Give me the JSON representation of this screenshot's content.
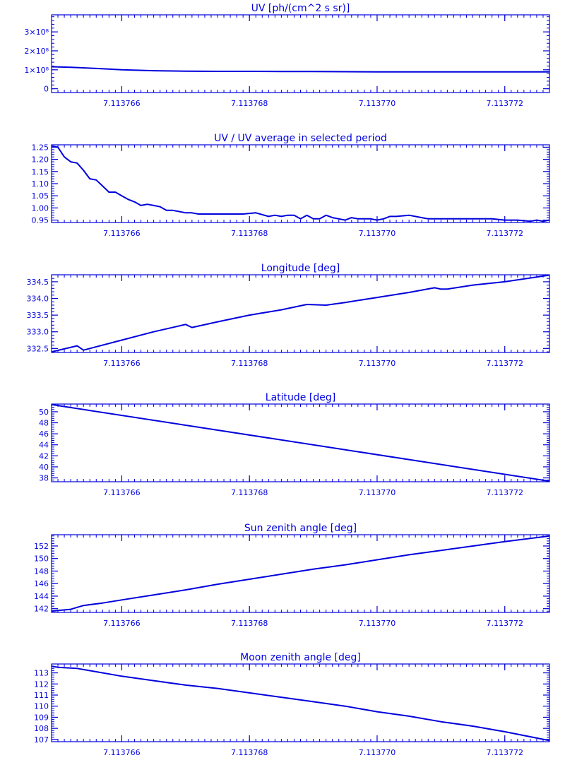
{
  "style": {
    "color": "#0000dd",
    "background": "#ffffff"
  },
  "chart_data": [
    {
      "type": "line",
      "title": "UV [ph/(cm^2 s sr)]",
      "xlim": [
        7.1137649,
        7.1137727
      ],
      "xticks": [
        7.113766,
        7.113768,
        7.11377,
        7.113772
      ],
      "xtick_labels": [
        "7.113766",
        "7.113768",
        "7.113770",
        "7.113772"
      ],
      "ylim": [
        -20000000.0,
        390000000.0
      ],
      "yticks": [
        0,
        100000000.0,
        200000000.0,
        300000000.0
      ],
      "ytick_labels": [
        "0",
        "1×10⁸",
        "2×10⁸",
        "3×10⁸"
      ],
      "grid": false,
      "x": [
        7.1137649,
        7.1137652,
        7.1137656,
        7.113766,
        7.1137665,
        7.113767,
        7.1137675,
        7.113768,
        7.1137685,
        7.113769,
        7.1137695,
        7.11377,
        7.1137705,
        7.113771,
        7.1137715,
        7.113772,
        7.1137727
      ],
      "y": [
        116000000.0,
        113000000.0,
        107000000.0,
        100000000.0,
        95000000.0,
        93000000.0,
        92000000.0,
        92000000.0,
        91000000.0,
        91000000.0,
        90000000.0,
        89000000.0,
        89000000.0,
        89000000.0,
        89000000.0,
        89000000.0,
        89000000.0
      ]
    },
    {
      "type": "line",
      "title": "UV / UV average in selected period",
      "xlim": [
        7.1137649,
        7.1137727
      ],
      "xticks": [
        7.113766,
        7.113768,
        7.11377,
        7.113772
      ],
      "xtick_labels": [
        "7.113766",
        "7.113768",
        "7.113770",
        "7.113772"
      ],
      "ylim": [
        0.94,
        1.26
      ],
      "yticks": [
        0.95,
        1.0,
        1.05,
        1.1,
        1.15,
        1.2,
        1.25
      ],
      "ytick_labels": [
        "0.95",
        "1.00",
        "1.05",
        "1.10",
        "1.15",
        "1.20",
        "1.25"
      ],
      "grid": false,
      "x": [
        7.1137649,
        7.113765,
        7.1137651,
        7.1137652,
        7.1137653,
        7.1137654,
        7.1137655,
        7.1137656,
        7.1137657,
        7.1137658,
        7.1137659,
        7.113766,
        7.1137661,
        7.1137662,
        7.1137663,
        7.1137664,
        7.1137665,
        7.1137666,
        7.1137667,
        7.1137668,
        7.1137669,
        7.113767,
        7.1137671,
        7.1137672,
        7.1137673,
        7.1137675,
        7.1137677,
        7.1137679,
        7.1137681,
        7.1137683,
        7.1137684,
        7.1137685,
        7.1137686,
        7.1137687,
        7.1137688,
        7.1137689,
        7.113769,
        7.1137691,
        7.1137692,
        7.1137693,
        7.1137694,
        7.1137695,
        7.1137696,
        7.1137697,
        7.1137698,
        7.1137699,
        7.11377,
        7.1137701,
        7.1137702,
        7.1137703,
        7.1137705,
        7.1137707,
        7.1137708,
        7.113771,
        7.1137712,
        7.1137714,
        7.1137716,
        7.1137718,
        7.113772,
        7.1137722,
        7.1137724,
        7.1137725,
        7.1137726,
        7.1137727
      ],
      "y": [
        1.255,
        1.25,
        1.21,
        1.19,
        1.185,
        1.155,
        1.12,
        1.115,
        1.09,
        1.065,
        1.065,
        1.05,
        1.035,
        1.025,
        1.01,
        1.015,
        1.01,
        1.005,
        0.99,
        0.99,
        0.985,
        0.98,
        0.98,
        0.975,
        0.975,
        0.975,
        0.975,
        0.975,
        0.98,
        0.965,
        0.97,
        0.965,
        0.97,
        0.97,
        0.955,
        0.97,
        0.955,
        0.955,
        0.97,
        0.96,
        0.955,
        0.95,
        0.96,
        0.955,
        0.955,
        0.955,
        0.95,
        0.955,
        0.965,
        0.965,
        0.97,
        0.96,
        0.955,
        0.955,
        0.955,
        0.955,
        0.955,
        0.955,
        0.95,
        0.95,
        0.945,
        0.95,
        0.945,
        0.95
      ]
    },
    {
      "type": "line",
      "title": "Longitude [deg]",
      "xlim": [
        7.1137649,
        7.1137727
      ],
      "xticks": [
        7.113766,
        7.113768,
        7.11377,
        7.113772
      ],
      "xtick_labels": [
        "7.113766",
        "7.113768",
        "7.113770",
        "7.113772"
      ],
      "ylim": [
        332.38,
        334.71
      ],
      "yticks": [
        332.5,
        333.0,
        333.5,
        334.0,
        334.5
      ],
      "ytick_labels": [
        "332.5",
        "333.0",
        "333.5",
        "334.0",
        "334.5"
      ],
      "grid": false,
      "x": [
        7.1137649,
        7.1137653,
        7.1137654,
        7.113766,
        7.1137665,
        7.113767,
        7.1137671,
        7.1137675,
        7.113768,
        7.1137685,
        7.1137688,
        7.1137689,
        7.1137692,
        7.1137695,
        7.11377,
        7.1137705,
        7.1137709,
        7.113771,
        7.1137711,
        7.1137715,
        7.113772,
        7.1137727
      ],
      "y": [
        332.4,
        332.58,
        332.45,
        332.75,
        333.0,
        333.22,
        333.13,
        333.3,
        333.5,
        333.66,
        333.78,
        333.82,
        333.8,
        333.88,
        334.03,
        334.18,
        334.32,
        334.28,
        334.28,
        334.4,
        334.5,
        334.7
      ]
    },
    {
      "type": "line",
      "title": "Latitude [deg]",
      "xlim": [
        7.1137649,
        7.1137727
      ],
      "xticks": [
        7.113766,
        7.113768,
        7.11377,
        7.113772
      ],
      "xtick_labels": [
        "7.113766",
        "7.113768",
        "7.113770",
        "7.113772"
      ],
      "ylim": [
        37.3,
        51.4
      ],
      "yticks": [
        38,
        40,
        42,
        44,
        46,
        48,
        50
      ],
      "ytick_labels": [
        "38",
        "40",
        "42",
        "44",
        "46",
        "48",
        "50"
      ],
      "grid": false,
      "x": [
        7.1137649,
        7.1137727
      ],
      "y": [
        51.3,
        37.4
      ]
    },
    {
      "type": "line",
      "title": "Sun zenith angle [deg]",
      "xlim": [
        7.1137649,
        7.1137727
      ],
      "xticks": [
        7.113766,
        7.113768,
        7.11377,
        7.113772
      ],
      "xtick_labels": [
        "7.113766",
        "7.113768",
        "7.113770",
        "7.113772"
      ],
      "ylim": [
        141.4,
        153.8
      ],
      "yticks": [
        142,
        144,
        146,
        148,
        150,
        152
      ],
      "ytick_labels": [
        "142",
        "144",
        "146",
        "148",
        "150",
        "152"
      ],
      "grid": false,
      "x": [
        7.1137649,
        7.113765,
        7.1137652,
        7.1137654,
        7.1137657,
        7.113766,
        7.1137665,
        7.113767,
        7.1137675,
        7.113768,
        7.1137685,
        7.113769,
        7.1137695,
        7.11377,
        7.1137705,
        7.113771,
        7.1137715,
        7.113772,
        7.1137727
      ],
      "y": [
        141.6,
        141.7,
        141.9,
        142.5,
        142.9,
        143.4,
        144.2,
        145.0,
        145.9,
        146.7,
        147.5,
        148.3,
        149.0,
        149.8,
        150.6,
        151.3,
        152.0,
        152.7,
        153.6
      ]
    },
    {
      "type": "line",
      "title": "Moon zenith angle [deg]",
      "xlim": [
        7.1137649,
        7.1137727
      ],
      "xticks": [
        7.113766,
        7.113768,
        7.11377,
        7.113772
      ],
      "xtick_labels": [
        "7.113766",
        "7.113768",
        "7.113770",
        "7.113772"
      ],
      "ylim": [
        106.8,
        113.8
      ],
      "yticks": [
        107,
        108,
        109,
        110,
        111,
        112,
        113
      ],
      "ytick_labels": [
        "107",
        "108",
        "109",
        "110",
        "111",
        "112",
        "113"
      ],
      "grid": false,
      "x": [
        7.1137649,
        7.113765,
        7.1137653,
        7.1137656,
        7.113766,
        7.1137665,
        7.113767,
        7.1137675,
        7.113768,
        7.1137685,
        7.113769,
        7.1137695,
        7.11377,
        7.1137705,
        7.113771,
        7.1137715,
        7.113772,
        7.1137727
      ],
      "y": [
        113.6,
        113.5,
        113.4,
        113.1,
        112.7,
        112.3,
        111.9,
        111.6,
        111.2,
        110.8,
        110.4,
        110.0,
        109.5,
        109.1,
        108.6,
        108.2,
        107.7,
        106.9
      ]
    }
  ]
}
